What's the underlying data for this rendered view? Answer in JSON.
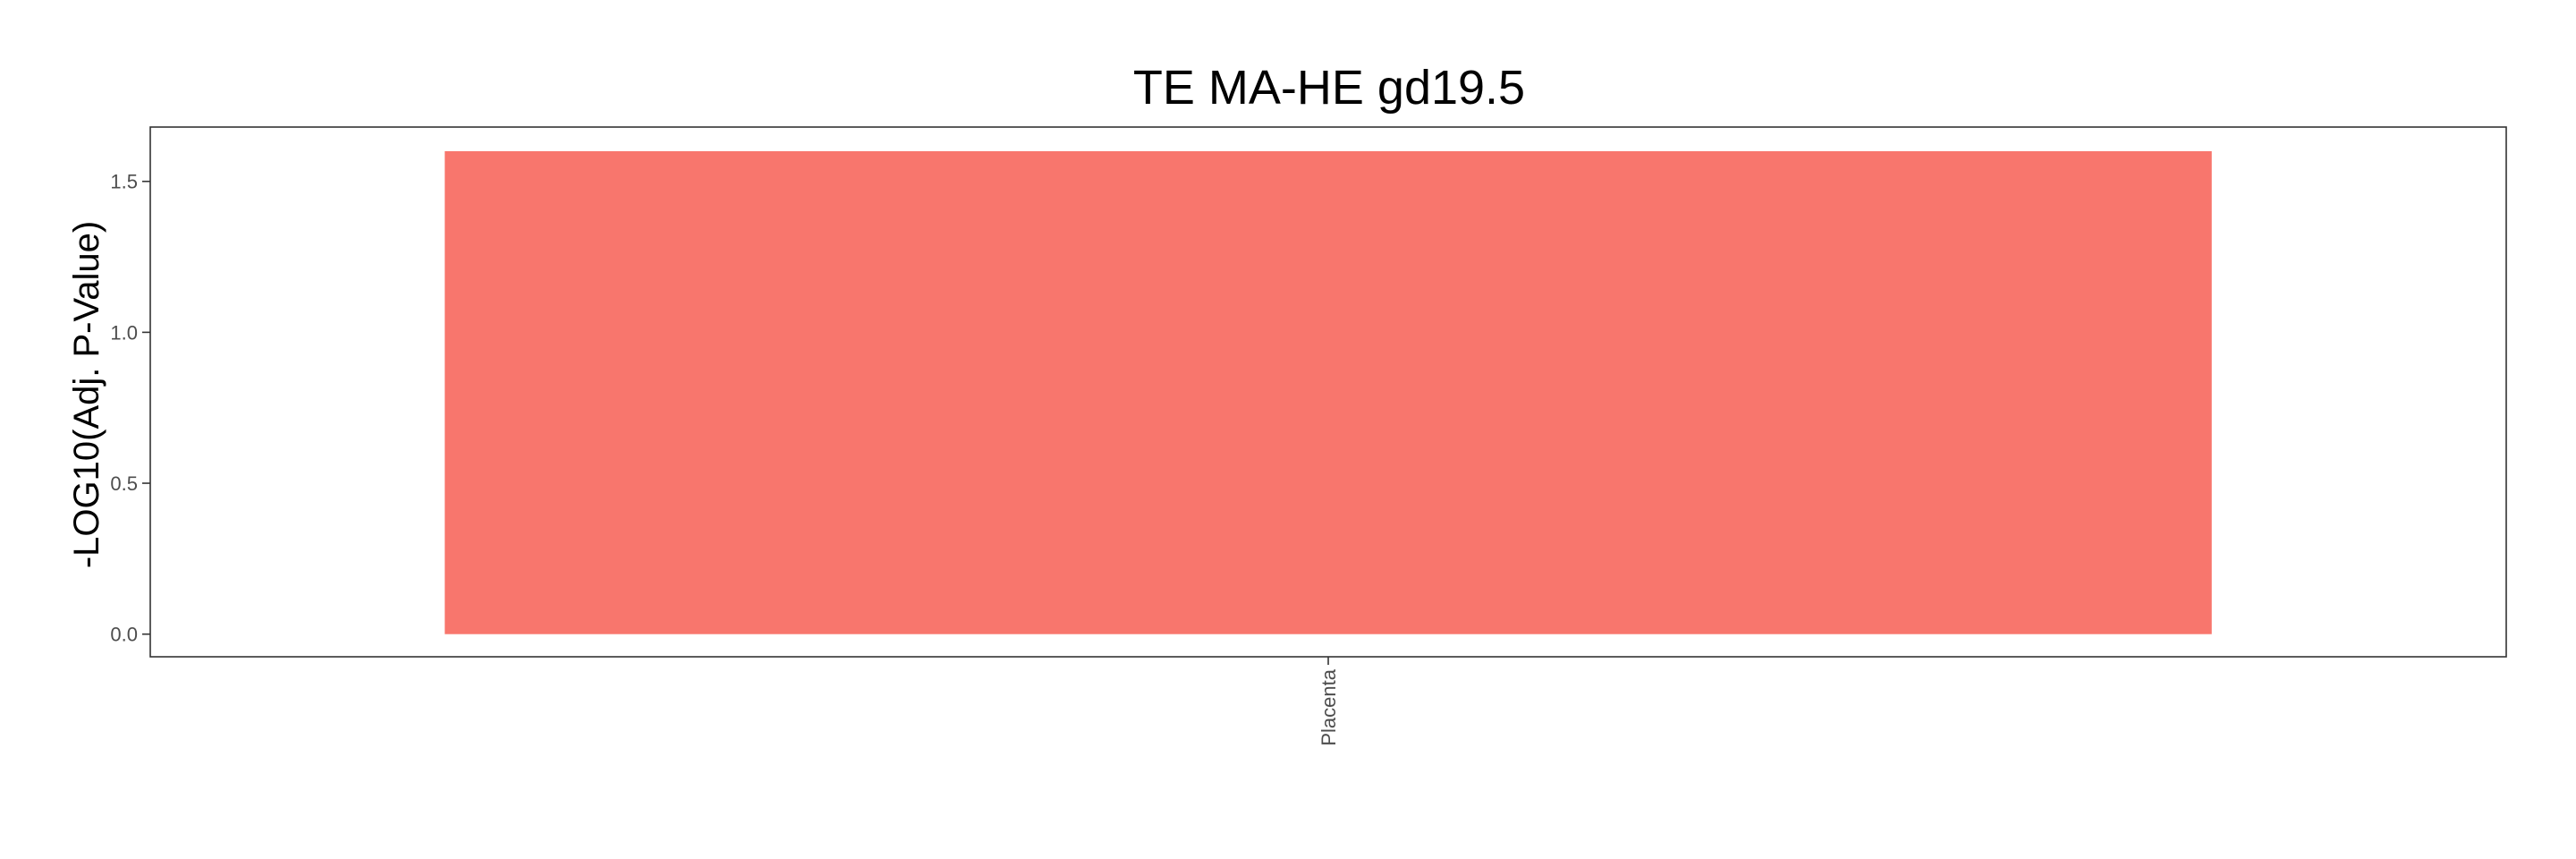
{
  "chart_data": {
    "type": "bar",
    "title": "TE MA-HE gd19.5",
    "xlabel": "",
    "ylabel": "-LOG10(Adj. P-Value)",
    "categories": [
      "Placenta"
    ],
    "values": [
      1.6
    ],
    "ylim": [
      -0.075,
      1.68
    ],
    "yticks": [
      0.0,
      0.5,
      1.0,
      1.5
    ],
    "ytick_labels": [
      "0.0",
      "0.5",
      "1.0",
      "1.5"
    ],
    "bar_color": "#F8766D",
    "grid": false,
    "legend": "none"
  }
}
